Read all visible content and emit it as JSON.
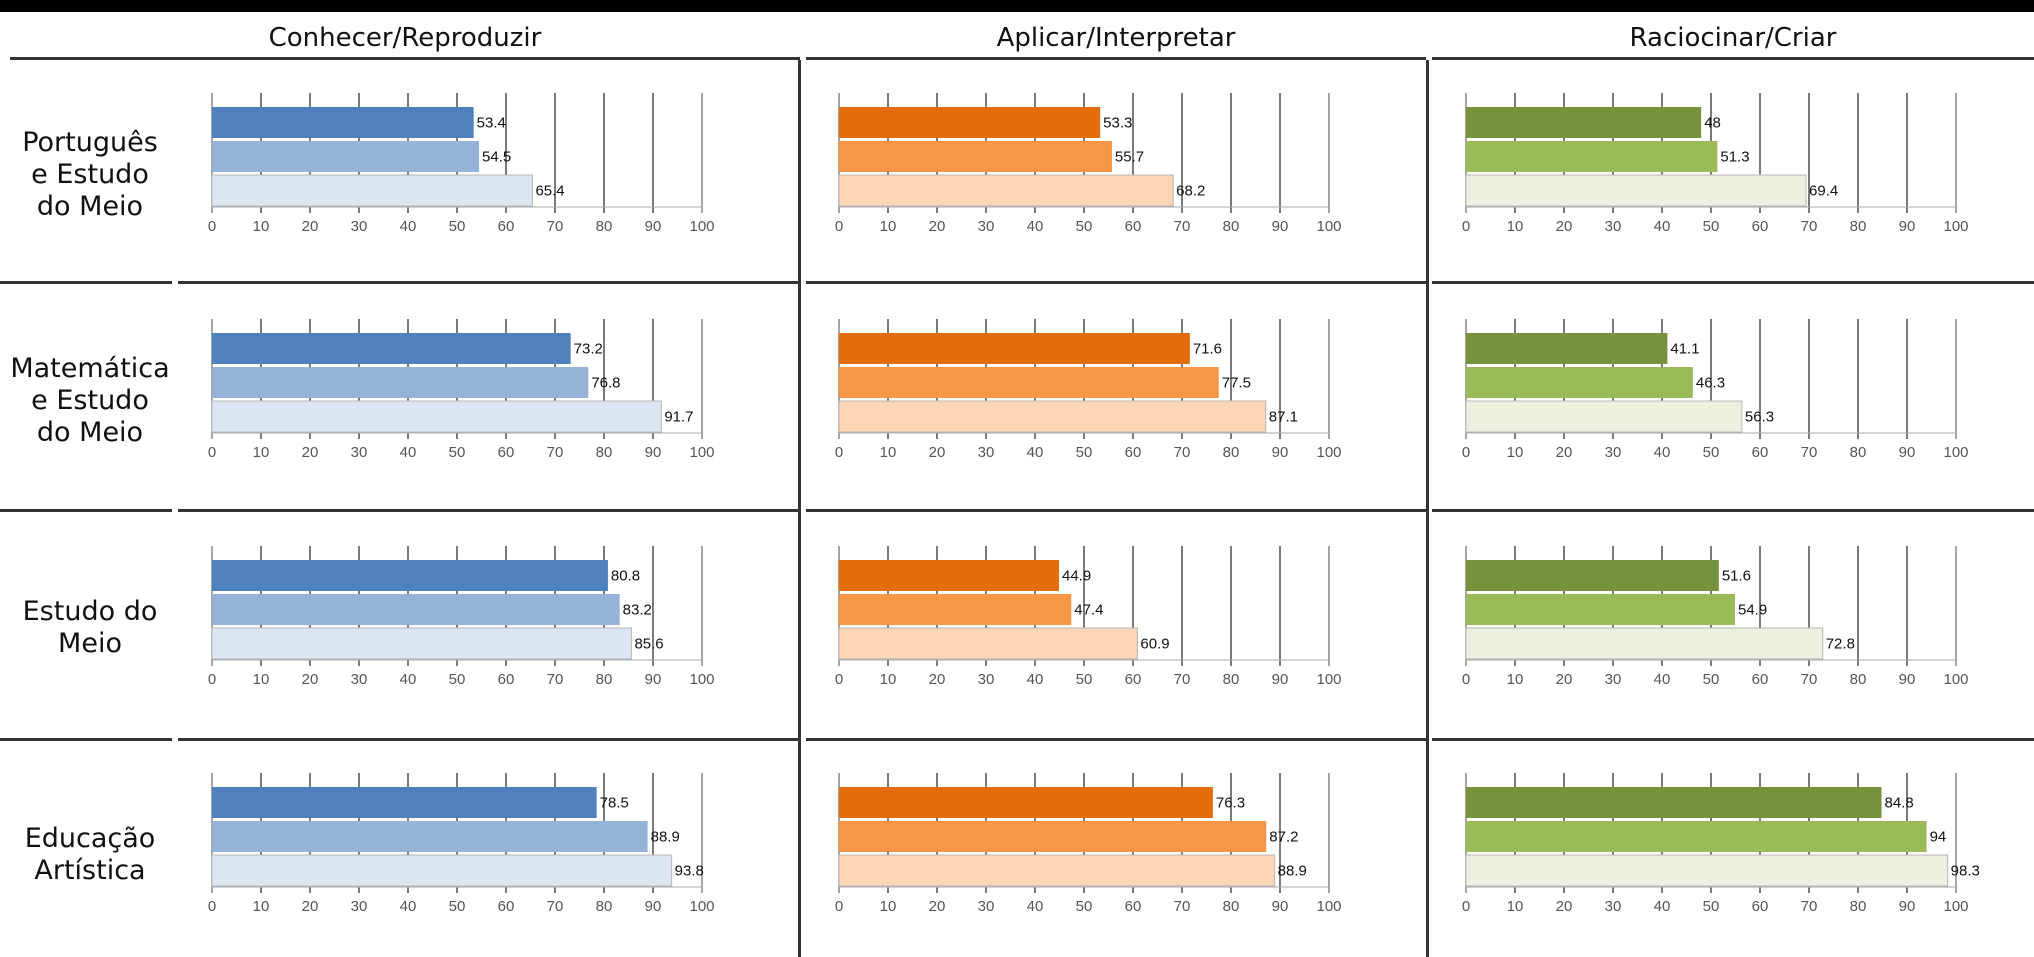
{
  "columns": [
    "Conhecer/Reproduzir",
    "Aplicar/Interpretar",
    "Raciocinar/Criar"
  ],
  "rows": [
    "Português e Estudo do Meio",
    "Matemática e Estudo do Meio",
    "Estudo do Meio",
    "Educação Artística"
  ],
  "row_label_lines": [
    [
      "Português",
      "e Estudo",
      "do Meio"
    ],
    [
      "Matemática",
      "e Estudo",
      "do Meio"
    ],
    [
      "Estudo do",
      "Meio"
    ],
    [
      "Educação",
      "Artística"
    ]
  ],
  "colors": {
    "blue": [
      "#4f81bd",
      "#95b3d7",
      "#dce6f1"
    ],
    "orange": [
      "#e46c0a",
      "#f79646",
      "#fcd5b4"
    ],
    "green": [
      "#76923c",
      "#9bbb59",
      "#ebf1de"
    ]
  },
  "chart_data": [
    {
      "type": "bar",
      "orientation": "horizontal",
      "row": "Português e Estudo do Meio",
      "column": "Conhecer/Reproduzir",
      "values": [
        53.4,
        54.5,
        65.4
      ],
      "xlim": [
        0,
        100
      ],
      "xticks": [
        0,
        10,
        20,
        30,
        40,
        50,
        60,
        70,
        80,
        90,
        100
      ],
      "palette": "blue"
    },
    {
      "type": "bar",
      "orientation": "horizontal",
      "row": "Português e Estudo do Meio",
      "column": "Aplicar/Interpretar",
      "values": [
        53.3,
        55.7,
        68.2
      ],
      "xlim": [
        0,
        100
      ],
      "xticks": [
        0,
        10,
        20,
        30,
        40,
        50,
        60,
        70,
        80,
        90,
        100
      ],
      "palette": "orange"
    },
    {
      "type": "bar",
      "orientation": "horizontal",
      "row": "Português e Estudo do Meio",
      "column": "Raciocinar/Criar",
      "values": [
        48,
        51.3,
        69.4
      ],
      "xlim": [
        0,
        100
      ],
      "xticks": [
        0,
        10,
        20,
        30,
        40,
        50,
        60,
        70,
        80,
        90,
        100
      ],
      "palette": "green"
    },
    {
      "type": "bar",
      "orientation": "horizontal",
      "row": "Matemática e Estudo do Meio",
      "column": "Conhecer/Reproduzir",
      "values": [
        73.2,
        76.8,
        91.7
      ],
      "xlim": [
        0,
        100
      ],
      "xticks": [
        0,
        10,
        20,
        30,
        40,
        50,
        60,
        70,
        80,
        90,
        100
      ],
      "palette": "blue"
    },
    {
      "type": "bar",
      "orientation": "horizontal",
      "row": "Matemática e Estudo do Meio",
      "column": "Aplicar/Interpretar",
      "values": [
        71.6,
        77.5,
        87.1
      ],
      "xlim": [
        0,
        100
      ],
      "xticks": [
        0,
        10,
        20,
        30,
        40,
        50,
        60,
        70,
        80,
        90,
        100
      ],
      "palette": "orange"
    },
    {
      "type": "bar",
      "orientation": "horizontal",
      "row": "Matemática e Estudo do Meio",
      "column": "Raciocinar/Criar",
      "values": [
        41.1,
        46.3,
        56.3
      ],
      "xlim": [
        0,
        100
      ],
      "xticks": [
        0,
        10,
        20,
        30,
        40,
        50,
        60,
        70,
        80,
        90,
        100
      ],
      "palette": "green"
    },
    {
      "type": "bar",
      "orientation": "horizontal",
      "row": "Estudo do Meio",
      "column": "Conhecer/Reproduzir",
      "values": [
        80.8,
        83.2,
        85.6
      ],
      "xlim": [
        0,
        100
      ],
      "xticks": [
        0,
        10,
        20,
        30,
        40,
        50,
        60,
        70,
        80,
        90,
        100
      ],
      "palette": "blue"
    },
    {
      "type": "bar",
      "orientation": "horizontal",
      "row": "Estudo do Meio",
      "column": "Aplicar/Interpretar",
      "values": [
        44.9,
        47.4,
        60.9
      ],
      "xlim": [
        0,
        100
      ],
      "xticks": [
        0,
        10,
        20,
        30,
        40,
        50,
        60,
        70,
        80,
        90,
        100
      ],
      "palette": "orange"
    },
    {
      "type": "bar",
      "orientation": "horizontal",
      "row": "Estudo do Meio",
      "column": "Raciocinar/Criar",
      "values": [
        51.6,
        54.9,
        72.8
      ],
      "xlim": [
        0,
        100
      ],
      "xticks": [
        0,
        10,
        20,
        30,
        40,
        50,
        60,
        70,
        80,
        90,
        100
      ],
      "palette": "green"
    },
    {
      "type": "bar",
      "orientation": "horizontal",
      "row": "Educação Artística",
      "column": "Conhecer/Reproduzir",
      "values": [
        78.5,
        88.9,
        93.8
      ],
      "xlim": [
        0,
        100
      ],
      "xticks": [
        0,
        10,
        20,
        30,
        40,
        50,
        60,
        70,
        80,
        90,
        100
      ],
      "palette": "blue"
    },
    {
      "type": "bar",
      "orientation": "horizontal",
      "row": "Educação Artística",
      "column": "Aplicar/Interpretar",
      "values": [
        76.3,
        87.2,
        88.9
      ],
      "xlim": [
        0,
        100
      ],
      "xticks": [
        0,
        10,
        20,
        30,
        40,
        50,
        60,
        70,
        80,
        90,
        100
      ],
      "palette": "orange"
    },
    {
      "type": "bar",
      "orientation": "horizontal",
      "row": "Educação Artística",
      "column": "Raciocinar/Criar",
      "values": [
        84.8,
        94,
        98.3
      ],
      "xlim": [
        0,
        100
      ],
      "xticks": [
        0,
        10,
        20,
        30,
        40,
        50,
        60,
        70,
        80,
        90,
        100
      ],
      "palette": "green"
    }
  ]
}
